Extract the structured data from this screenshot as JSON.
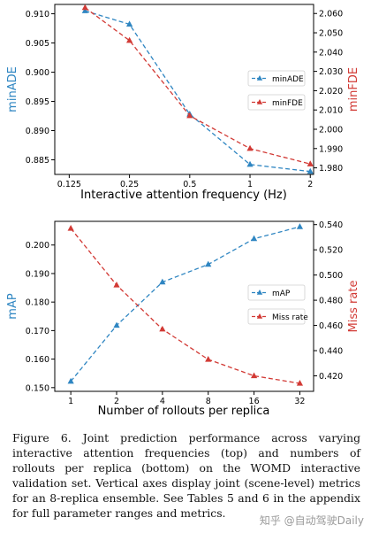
{
  "colors": {
    "blue": "#2f86c2",
    "red": "#d23a35",
    "axis": "#000000"
  },
  "chart_data": [
    {
      "type": "line",
      "xlabel": "Interactive attention frequency (Hz)",
      "ylabel_left": "minADE",
      "ylabel_right": "minFDE",
      "x_scale": "log",
      "x_ticks": [
        "0.125",
        "0.25",
        "0.5",
        "1",
        "2"
      ],
      "x_tick_values": [
        0.125,
        0.25,
        0.5,
        1,
        2
      ],
      "y_left_ticks": [
        "0.885",
        "0.890",
        "0.895",
        "0.900",
        "0.905",
        "0.910"
      ],
      "y_right_ticks": [
        "1.980",
        "1.990",
        "2.000",
        "2.010",
        "2.020",
        "2.030",
        "2.040",
        "2.050",
        "2.060"
      ],
      "ylim_left": [
        0.8825,
        0.9116
      ],
      "ylim_right": [
        1.9766,
        2.0647
      ],
      "legend_position": "center-right",
      "series": [
        {
          "name": "minADE",
          "axis": "left",
          "color": "#2f86c2",
          "x": [
            0.15,
            0.25,
            0.5,
            1,
            2
          ],
          "y": [
            0.9105,
            0.9082,
            0.8928,
            0.8842,
            0.883
          ]
        },
        {
          "name": "minFDE",
          "axis": "right",
          "color": "#d23a35",
          "x": [
            0.15,
            0.25,
            0.5,
            1,
            2
          ],
          "y": [
            2.063,
            2.046,
            2.007,
            1.99,
            1.982
          ]
        }
      ]
    },
    {
      "type": "line",
      "xlabel": "Number of rollouts per replica",
      "ylabel_left": "mAP",
      "ylabel_right": "Miss rate",
      "x_ticks": [
        "1",
        "2",
        "4",
        "8",
        "16",
        "32"
      ],
      "x_tick_values": [
        1,
        2,
        4,
        8,
        16,
        32
      ],
      "y_left_ticks": [
        "0.150",
        "0.160",
        "0.170",
        "0.180",
        "0.190",
        "0.200"
      ],
      "y_right_ticks": [
        "0.420",
        "0.440",
        "0.460",
        "0.480",
        "0.500",
        "0.520",
        "0.540"
      ],
      "ylim_left": [
        0.1487,
        0.2083
      ],
      "ylim_right": [
        0.4077,
        0.5426
      ],
      "legend_position": "center-right",
      "series": [
        {
          "name": "mAP",
          "axis": "left",
          "color": "#2f86c2",
          "x": [
            1,
            2,
            4,
            8,
            16,
            32
          ],
          "y": [
            0.1522,
            0.1718,
            0.187,
            0.1932,
            0.2022,
            0.2064
          ]
        },
        {
          "name": "Miss rate",
          "axis": "right",
          "color": "#d23a35",
          "x": [
            1,
            2,
            4,
            8,
            16,
            32
          ],
          "y": [
            0.537,
            0.492,
            0.457,
            0.433,
            0.42,
            0.414
          ]
        }
      ]
    }
  ],
  "caption": "Figure 6. Joint prediction performance across varying interactive attention frequencies (top) and numbers of rollouts per replica (bottom) on the WOMD interactive validation set. Vertical axes display joint (scene-level) metrics for an 8-replica ensemble. See Tables 5 and 6 in the appendix for full parameter ranges and metrics.",
  "watermark": "知乎 @自动驾驶Daily"
}
